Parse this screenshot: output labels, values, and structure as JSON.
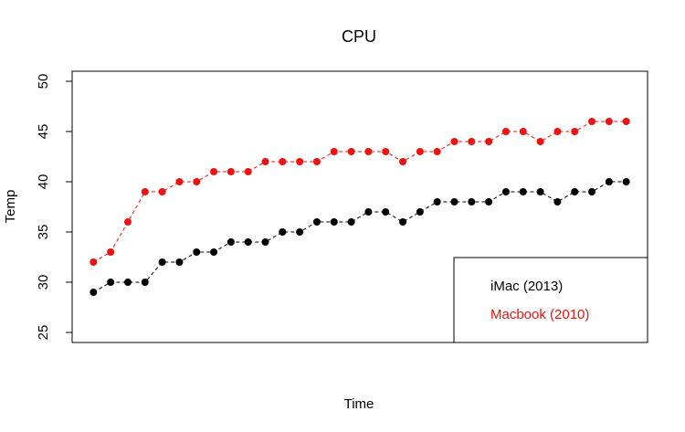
{
  "chart_data": {
    "type": "line",
    "title": "CPU",
    "x_label": "Time",
    "y_label": "Temp",
    "x": [
      1,
      2,
      3,
      4,
      5,
      6,
      7,
      8,
      9,
      10,
      11,
      12,
      13,
      14,
      15,
      16,
      17,
      18,
      19,
      20,
      21,
      22,
      23,
      24,
      25,
      26,
      27,
      28,
      29,
      30,
      31,
      32
    ],
    "xlim": [
      -0.24,
      33.24
    ],
    "ylim": [
      24,
      51
    ],
    "yticks": [
      25,
      30,
      35,
      40,
      45,
      50
    ],
    "legend": "bottomright",
    "series": [
      {
        "name": "iMac (2013)",
        "color": "#000000",
        "values": [
          29,
          30,
          30,
          30,
          32,
          32,
          33,
          33,
          34,
          34,
          34,
          35,
          35,
          36,
          36,
          36,
          37,
          37,
          36,
          37,
          38,
          38,
          38,
          38,
          39,
          39,
          39,
          38,
          39,
          39,
          40,
          40
        ]
      },
      {
        "name": "Macbook (2010)",
        "color": "#ee1111",
        "values": [
          32,
          33,
          36,
          39,
          39,
          40,
          40,
          41,
          41,
          41,
          42,
          42,
          42,
          42,
          43,
          43,
          43,
          43,
          42,
          43,
          43,
          44,
          44,
          44,
          45,
          45,
          44,
          45,
          45,
          46,
          46,
          46
        ]
      }
    ]
  }
}
